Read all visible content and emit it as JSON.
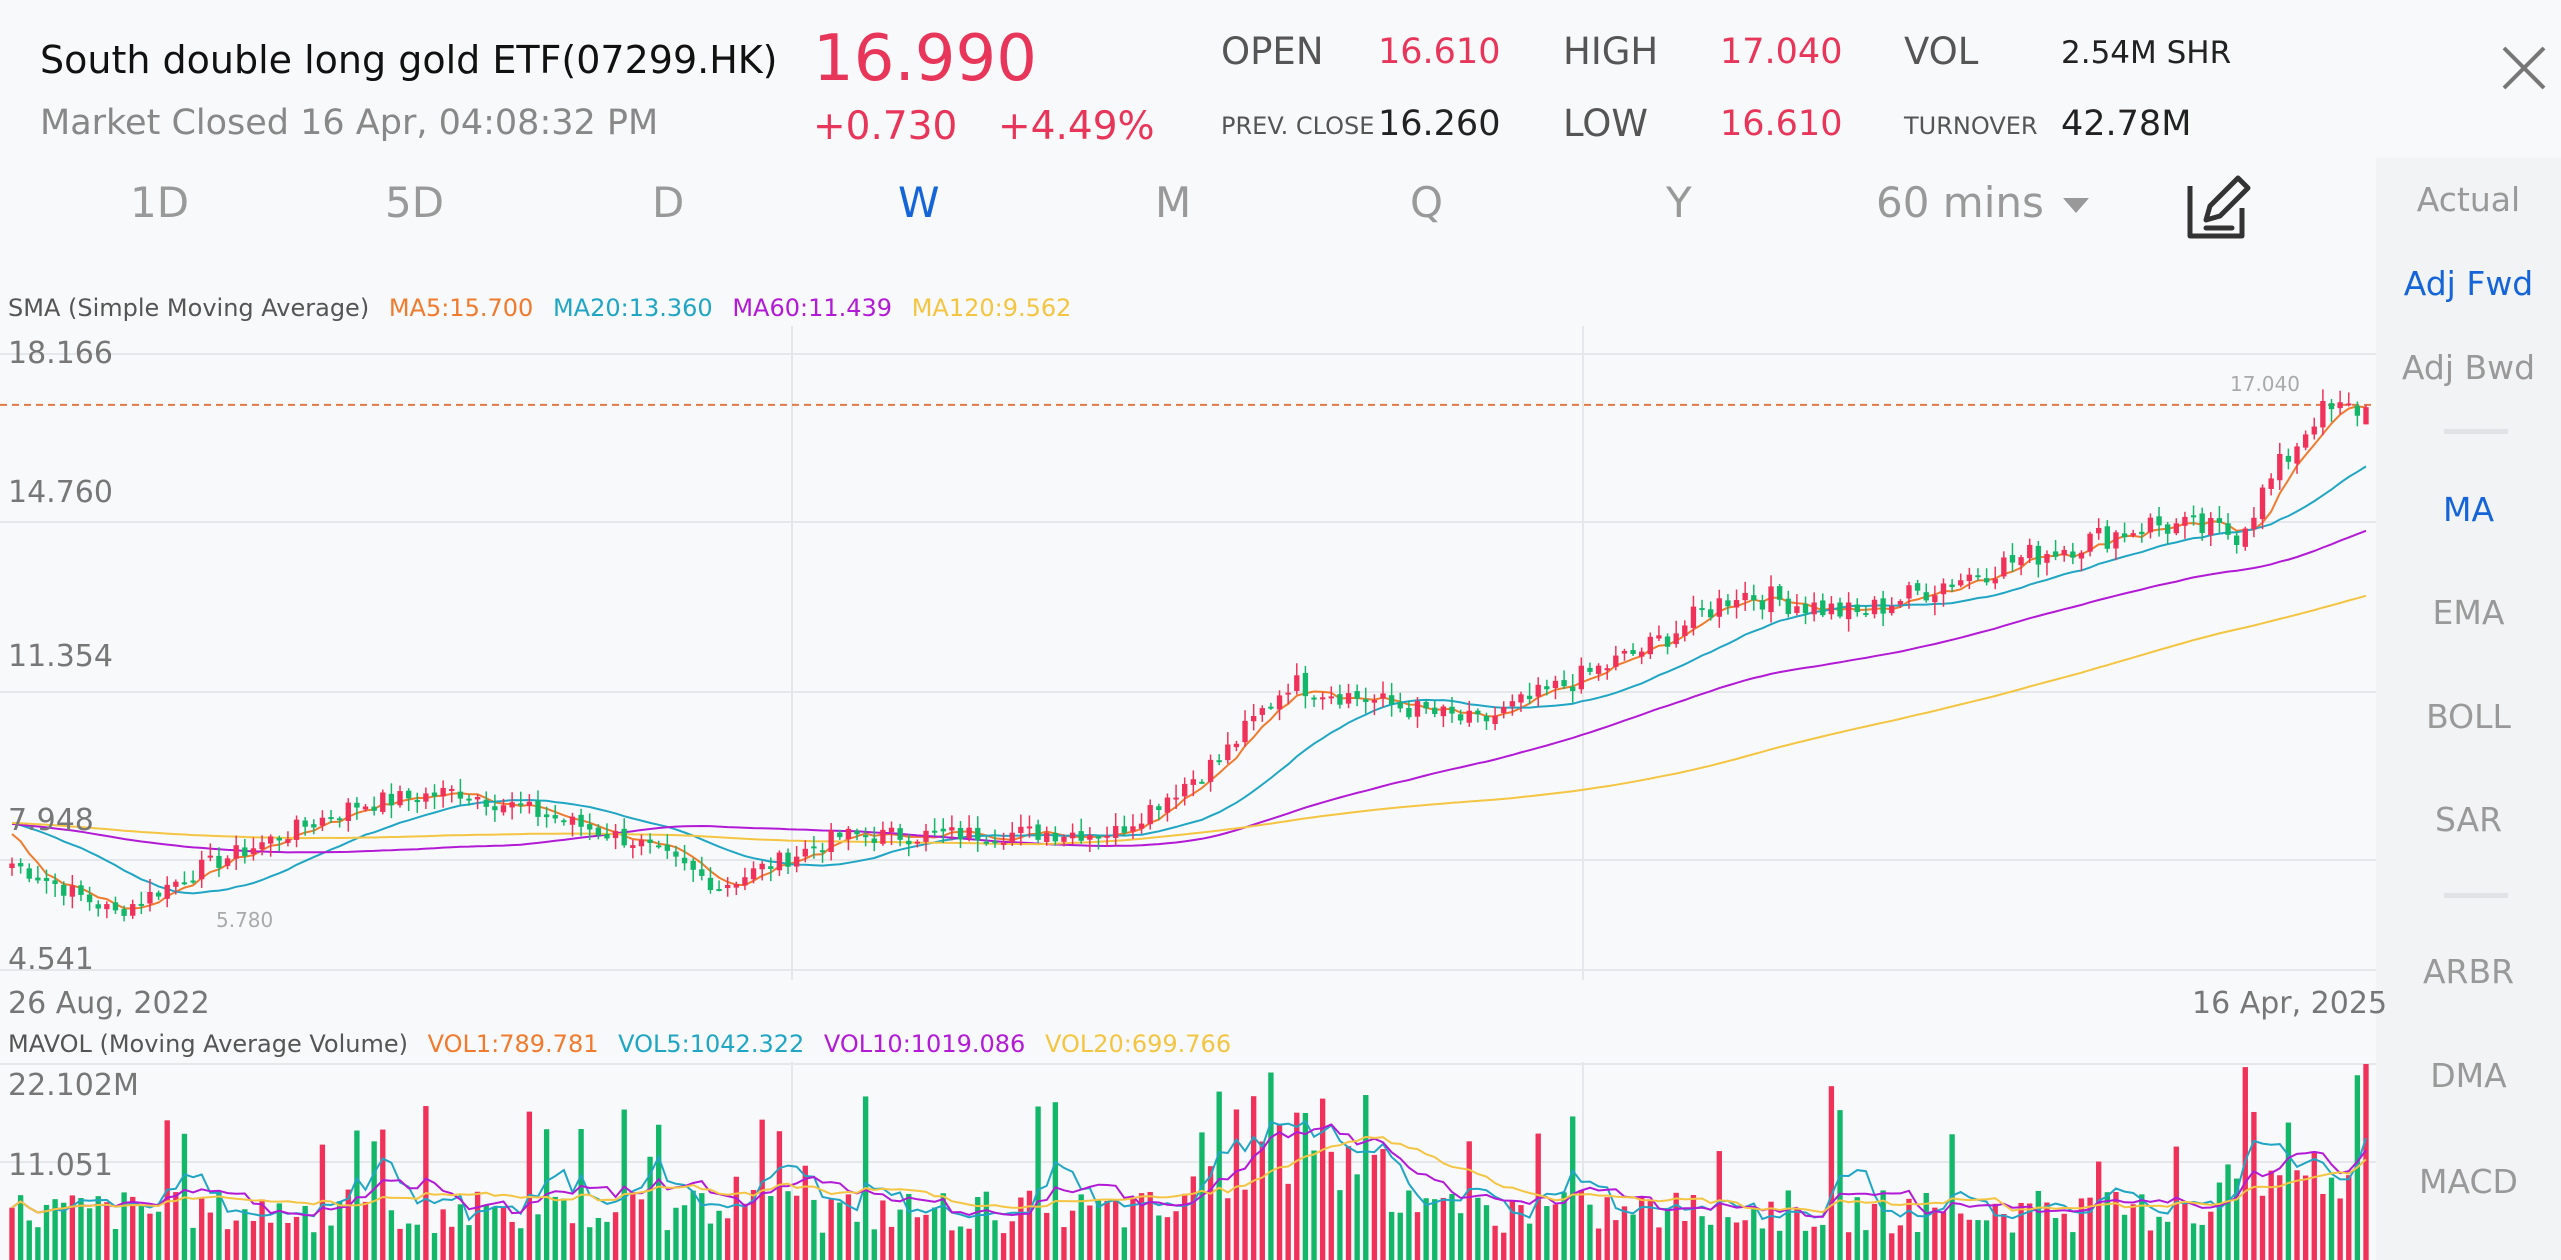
{
  "header": {
    "title": "South double long gold ETF(07299.HK)",
    "status": "Market Closed 16 Apr, 04:08:32 PM",
    "price": "16.990",
    "change": "+0.730",
    "change_pct": "+4.49%",
    "open_label": "OPEN",
    "open": "16.610",
    "high_label": "HIGH",
    "high": "17.040",
    "vol_label": "VOL",
    "vol": "2.54M SHR",
    "prev_close_label": "PREV. CLOSE",
    "prev_close": "16.260",
    "low_label": "LOW",
    "low": "16.610",
    "turnover_label": "TURNOVER",
    "turnover": "42.78M"
  },
  "periods": [
    "1D",
    "5D",
    "D",
    "W",
    "M",
    "Q",
    "Y",
    "60 mins"
  ],
  "active_period": "W",
  "sidebar": {
    "items": [
      "Actual",
      "Adj Fwd",
      "Adj Bwd",
      "MA",
      "EMA",
      "BOLL",
      "SAR",
      "ARBR",
      "DMA",
      "MACD"
    ],
    "active": [
      "Adj Fwd",
      "MA"
    ]
  },
  "sma": {
    "label": "SMA (Simple Moving Average)",
    "ma5": "MA5:15.700",
    "ma20": "MA20:13.360",
    "ma60": "MA60:11.439",
    "ma120": "MA120:9.562"
  },
  "mavol": {
    "label": "MAVOL (Moving Average Volume)",
    "vol1": "VOL1:789.781",
    "vol5": "VOL5:1042.322",
    "vol10": "VOL10:1019.086",
    "vol20": "VOL20:699.766"
  },
  "price_axis": [
    "18.166",
    "14.760",
    "11.354",
    "7.948",
    "4.541"
  ],
  "vol_axis": [
    "22.102M",
    "11.051"
  ],
  "date_start": "26 Aug, 2022",
  "date_end": "16 Apr, 2025",
  "high_marker": "17.040",
  "low_marker": "5.780",
  "colors": {
    "up": "#f0325a",
    "down": "#12b76a",
    "ma5": "#f07b2e",
    "ma20": "#20a6c4",
    "ma60": "#b21ad6",
    "ma120": "#f4c542",
    "accent": "#1565d8"
  },
  "chart_data": {
    "type": "candlestick",
    "y_range": [
      4.541,
      18.166
    ],
    "key_points": [
      {
        "week": 0,
        "price": 6.9
      },
      {
        "week": 12,
        "price": 5.8
      },
      {
        "week": 22,
        "price": 6.8
      },
      {
        "week": 40,
        "price": 8.2
      },
      {
        "week": 52,
        "price": 8.5
      },
      {
        "week": 72,
        "price": 7.4
      },
      {
        "week": 82,
        "price": 6.4
      },
      {
        "week": 96,
        "price": 7.5
      },
      {
        "week": 128,
        "price": 7.6
      },
      {
        "week": 140,
        "price": 9.2
      },
      {
        "week": 148,
        "price": 10.9
      },
      {
        "week": 170,
        "price": 10.0
      },
      {
        "week": 190,
        "price": 11.7
      },
      {
        "week": 200,
        "price": 12.9
      },
      {
        "week": 214,
        "price": 12.4
      },
      {
        "week": 224,
        "price": 13.1
      },
      {
        "week": 234,
        "price": 13.7
      },
      {
        "week": 248,
        "price": 14.4
      },
      {
        "week": 258,
        "price": 14.2
      },
      {
        "week": 267,
        "price": 16.8
      },
      {
        "week": 273,
        "price": 16.99
      }
    ],
    "high": 17.04,
    "low": 5.78,
    "volume_max": 22.102
  }
}
